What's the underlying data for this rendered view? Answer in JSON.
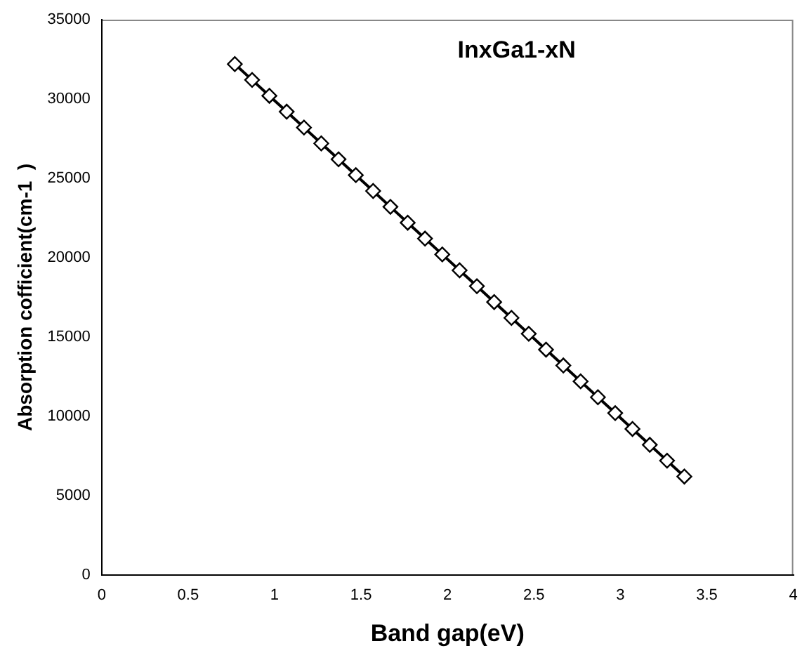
{
  "chart_data": {
    "type": "line",
    "title": "InxGa1-xN",
    "xlabel": "Band gap(eV)",
    "ylabel": "Absorption cofficient(cm-1  )",
    "x": [
      0.77,
      0.87,
      0.97,
      1.07,
      1.17,
      1.27,
      1.37,
      1.47,
      1.57,
      1.67,
      1.77,
      1.87,
      1.97,
      2.07,
      2.17,
      2.27,
      2.37,
      2.47,
      2.57,
      2.67,
      2.77,
      2.87,
      2.97,
      3.07,
      3.17,
      3.27,
      3.37
    ],
    "series": [
      {
        "color": "#000000",
        "values": [
          32200,
          31200,
          30200,
          29200,
          28200,
          27200,
          26200,
          25200,
          24200,
          23200,
          22200,
          21200,
          20200,
          19200,
          18200,
          17200,
          16200,
          15200,
          14200,
          13200,
          12200,
          11200,
          10200,
          9200,
          8200,
          7200,
          6200
        ]
      }
    ],
    "xlim": [
      0,
      4
    ],
    "xticks": [
      0,
      0.5,
      1,
      1.5,
      2,
      2.5,
      3,
      3.5,
      4
    ],
    "ylim": [
      0,
      35000
    ],
    "yticks": [
      0,
      5000,
      10000,
      15000,
      20000,
      25000,
      30000,
      35000
    ],
    "grid": false,
    "legend": false,
    "marker": "diamond",
    "line_style": "solid"
  }
}
